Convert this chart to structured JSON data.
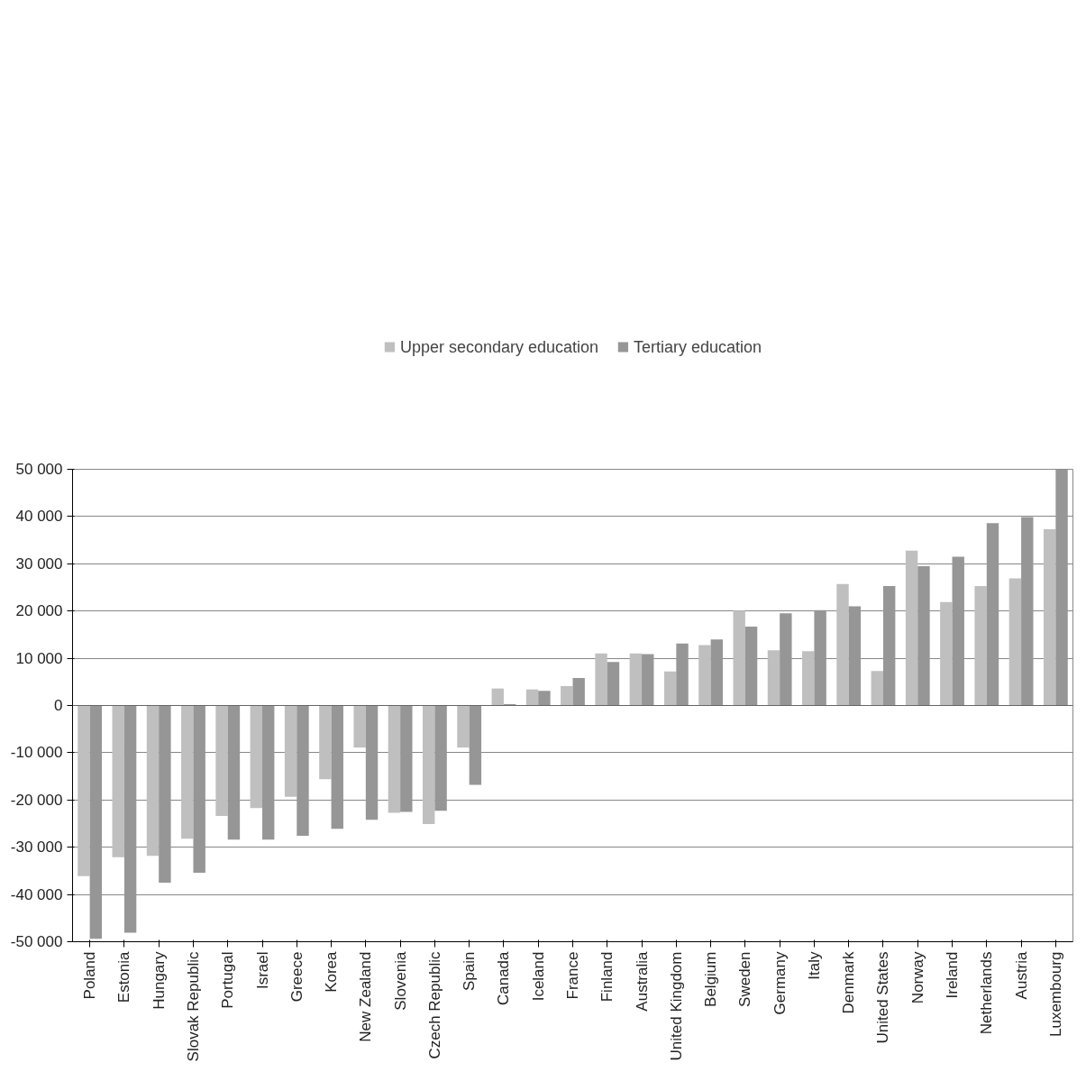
{
  "chart_data": {
    "type": "bar",
    "legend": "top",
    "grid": "y",
    "categories": [
      "Poland",
      "Estonia",
      "Hungary",
      "Slovak Republic",
      "Portugal",
      "Israel",
      "Greece",
      "Korea",
      "New Zealand",
      "Slovenia",
      "Czech Republic",
      "Spain",
      "Canada",
      "Iceland",
      "France",
      "Finland",
      "Australia",
      "United Kingdom",
      "Belgium",
      "Sweden",
      "Germany",
      "Italy",
      "Denmark",
      "United States",
      "Norway",
      "Ireland",
      "Netherlands",
      "Austria",
      "Luxembourg"
    ],
    "series": [
      {
        "name": "Upper secondary education",
        "color": "#bfbfbf",
        "values": [
          -36100,
          -32100,
          -31800,
          -28200,
          -23400,
          -21700,
          -19300,
          -15600,
          -8900,
          -22700,
          -25100,
          -8900,
          3600,
          3400,
          4100,
          11000,
          11000,
          7200,
          12800,
          20100,
          11700,
          11500,
          25700,
          7300,
          32800,
          21900,
          25300,
          26900,
          37300
        ]
      },
      {
        "name": "Tertiary education",
        "color": "#969696",
        "values": [
          -49400,
          -48100,
          -37500,
          -35400,
          -28400,
          -28400,
          -27600,
          -26100,
          -24200,
          -22500,
          -22300,
          -16800,
          300,
          3100,
          5800,
          9200,
          10900,
          13100,
          14000,
          16700,
          19500,
          20200,
          21000,
          25300,
          29500,
          31500,
          38600,
          39900,
          50000
        ]
      }
    ],
    "ylim": [
      -50000,
      50000
    ],
    "yticks": [
      {
        "value": -50000,
        "label": "-50 000"
      },
      {
        "value": -40000,
        "label": "-40 000"
      },
      {
        "value": -30000,
        "label": "-30 000"
      },
      {
        "value": -20000,
        "label": "-20 000"
      },
      {
        "value": -10000,
        "label": "-10 000"
      },
      0,
      {
        "value": 10000,
        "label": "10 000"
      },
      {
        "value": 20000,
        "label": "20 000"
      },
      {
        "value": 30000,
        "label": "30 000"
      },
      {
        "value": 40000,
        "label": "40 000"
      },
      {
        "value": 50000,
        "label": "50 000"
      }
    ]
  }
}
